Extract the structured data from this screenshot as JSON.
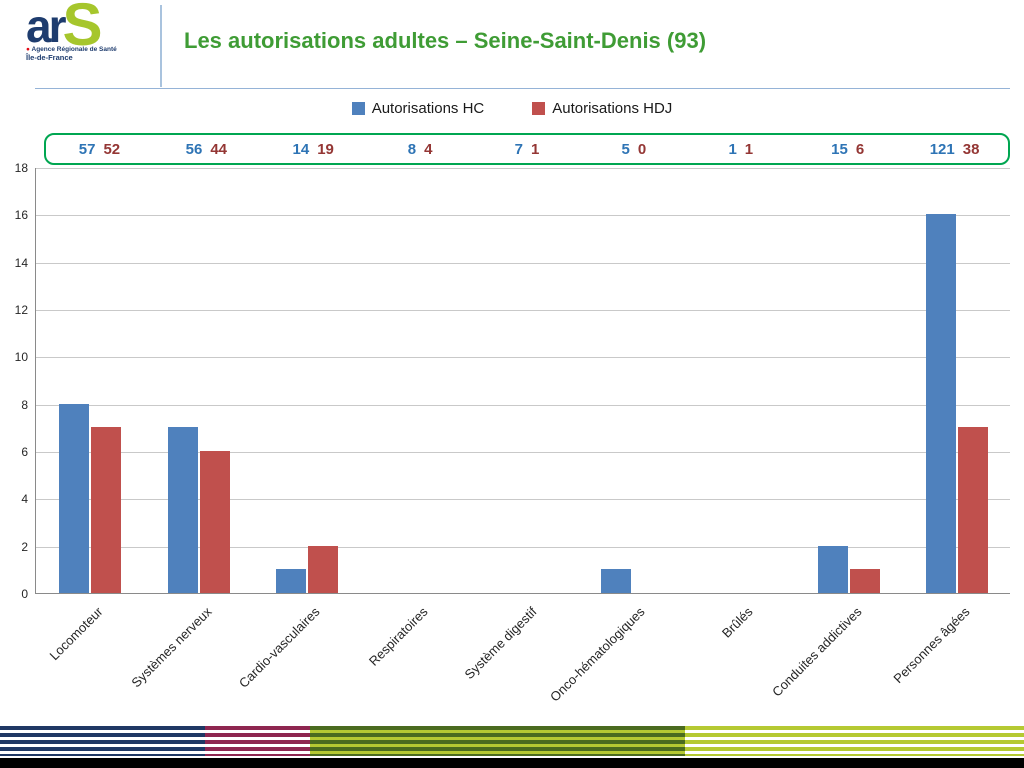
{
  "colors": {
    "hc": "#4f81bd",
    "hdj": "#c0504d",
    "title_green": "#3f9c35",
    "annotation_blue": "#2e74b5",
    "annotation_red": "#943634",
    "box_border_green": "#00a651",
    "logo_navy": "#1e3c6e",
    "logo_lime": "#a6c62c",
    "stripe_navy": "#1f3864",
    "stripe_crimson": "#8e2650",
    "stripe_darkgreen": "#4a6b1f",
    "stripe_lime": "#b5c932"
  },
  "header": {
    "title": "Les autorisations adultes – Seine-Saint-Denis (93)",
    "logo": {
      "ar": "ar",
      "s": "S",
      "line1": "Agence Régionale de Santé",
      "line2": "Île-de-France"
    }
  },
  "legend": [
    {
      "label": "Autorisations HC"
    },
    {
      "label": "Autorisations HDJ"
    }
  ],
  "chart_data": {
    "type": "bar",
    "categories": [
      "Locomoteur",
      "Systèmes nerveux",
      "Cardio-vasculaires",
      "Respiratoires",
      "Système digestif",
      "Onco-hématologiques",
      "Brûlés",
      "Conduites addictives",
      "Personnes âgées"
    ],
    "series": [
      {
        "name": "Autorisations HC",
        "values": [
          8,
          7,
          1,
          0,
          0,
          1,
          0,
          2,
          16
        ]
      },
      {
        "name": "Autorisations HDJ",
        "values": [
          7,
          6,
          2,
          0,
          0,
          0,
          0,
          1,
          7
        ]
      }
    ],
    "annotation_pairs": [
      [
        57,
        52
      ],
      [
        56,
        44
      ],
      [
        14,
        19
      ],
      [
        8,
        4
      ],
      [
        7,
        1
      ],
      [
        5,
        0
      ],
      [
        1,
        1
      ],
      [
        15,
        6
      ],
      [
        121,
        38
      ]
    ],
    "title": "Les autorisations adultes – Seine-Saint-Denis (93)",
    "xlabel": "",
    "ylabel": "",
    "ylim": [
      0,
      18
    ],
    "ytick_step": 2,
    "grid": true,
    "legend_position": "top"
  }
}
